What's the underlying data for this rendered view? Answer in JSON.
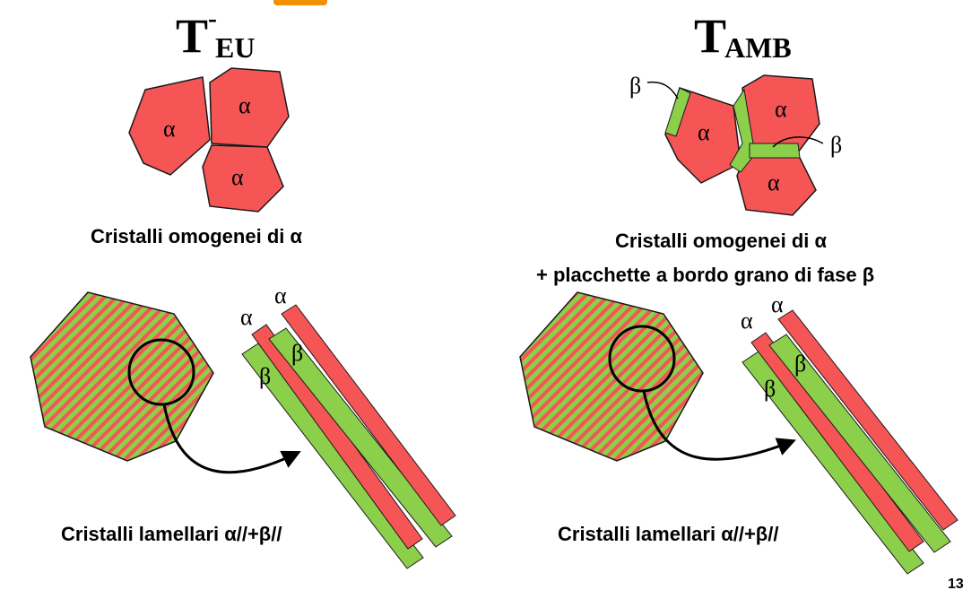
{
  "colors": {
    "alpha": "#f55555",
    "beta": "#8ccf4a",
    "outline": "#1a1a1a",
    "accent": "#f39200"
  },
  "left": {
    "title_main": "T",
    "title_sup": "-",
    "title_sub": "EU",
    "grains": [
      "α",
      "α",
      "α"
    ],
    "caption_grains": "Cristalli omogenei di α",
    "lamella_labels": {
      "alpha_a": "α",
      "alpha_b": "α",
      "beta_a": "β",
      "beta_b": "β"
    },
    "caption_lamellar": "Cristalli lamellari α//+β//"
  },
  "right": {
    "title_main": "T",
    "title_sub": "AMB",
    "grains": [
      "α",
      "α",
      "α"
    ],
    "beta_callouts": [
      "β",
      "β"
    ],
    "caption_grains_line1": "Cristalli omogenei di α",
    "caption_grains_line2": "+ placchette a bordo grano di fase β",
    "lamella_labels": {
      "alpha_a": "α",
      "alpha_b": "α",
      "beta_a": "β",
      "beta_b": "β"
    },
    "caption_lamellar": "Cristalli lamellari α//+β//"
  },
  "page_number": "13"
}
